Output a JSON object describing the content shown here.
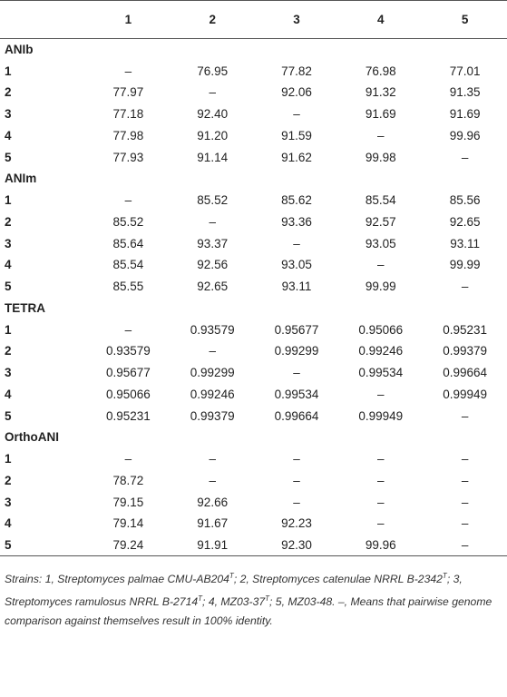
{
  "table": {
    "header": [
      "1",
      "2",
      "3",
      "4",
      "5"
    ],
    "sections": [
      {
        "title": "ANIb",
        "rows": [
          {
            "label": "1",
            "values": [
              "–",
              "76.95",
              "77.82",
              "76.98",
              "77.01"
            ]
          },
          {
            "label": "2",
            "values": [
              "77.97",
              "–",
              "92.06",
              "91.32",
              "91.35"
            ]
          },
          {
            "label": "3",
            "values": [
              "77.18",
              "92.40",
              "–",
              "91.69",
              "91.69"
            ]
          },
          {
            "label": "4",
            "values": [
              "77.98",
              "91.20",
              "91.59",
              "–",
              "99.96"
            ]
          },
          {
            "label": "5",
            "values": [
              "77.93",
              "91.14",
              "91.62",
              "99.98",
              "–"
            ]
          }
        ]
      },
      {
        "title": "ANIm",
        "rows": [
          {
            "label": "1",
            "values": [
              "–",
              "85.52",
              "85.62",
              "85.54",
              "85.56"
            ]
          },
          {
            "label": "2",
            "values": [
              "85.52",
              "–",
              "93.36",
              "92.57",
              "92.65"
            ]
          },
          {
            "label": "3",
            "values": [
              "85.64",
              "93.37",
              "–",
              "93.05",
              "93.11"
            ]
          },
          {
            "label": "4",
            "values": [
              "85.54",
              "92.56",
              "93.05",
              "–",
              "99.99"
            ]
          },
          {
            "label": "5",
            "values": [
              "85.55",
              "92.65",
              "93.11",
              "99.99",
              "–"
            ]
          }
        ]
      },
      {
        "title": "TETRA",
        "rows": [
          {
            "label": "1",
            "values": [
              "–",
              "0.93579",
              "0.95677",
              "0.95066",
              "0.95231"
            ]
          },
          {
            "label": "2",
            "values": [
              "0.93579",
              "–",
              "0.99299",
              "0.99246",
              "0.99379"
            ]
          },
          {
            "label": "3",
            "values": [
              "0.95677",
              "0.99299",
              "–",
              "0.99534",
              "0.99664"
            ]
          },
          {
            "label": "4",
            "values": [
              "0.95066",
              "0.99246",
              "0.99534",
              "–",
              "0.99949"
            ]
          },
          {
            "label": "5",
            "values": [
              "0.95231",
              "0.99379",
              "0.99664",
              "0.99949",
              "–"
            ]
          }
        ]
      },
      {
        "title": "OrthoANI",
        "rows": [
          {
            "label": "1",
            "values": [
              "–",
              "–",
              "–",
              "–",
              "–"
            ]
          },
          {
            "label": "2",
            "values": [
              "78.72",
              "–",
              "–",
              "–",
              "–"
            ]
          },
          {
            "label": "3",
            "values": [
              "79.15",
              "92.66",
              "–",
              "–",
              "–"
            ]
          },
          {
            "label": "4",
            "values": [
              "79.14",
              "91.67",
              "92.23",
              "–",
              "–"
            ]
          },
          {
            "label": "5",
            "values": [
              "79.24",
              "91.91",
              "92.30",
              "99.96",
              "–"
            ]
          }
        ]
      }
    ]
  },
  "footnote": [
    "Strains: 1, Streptomyces palmae CMU-AB204",
    "T",
    "; 2, Streptomyces catenulae NRRL B-2342",
    "T",
    "; 3, Streptomyces ramulosus NRRL B-2714",
    "T",
    "; 4, MZ03-37",
    "T",
    "; 5, MZ03-48. –, Means that pairwise genome comparison against themselves result in 100% identity."
  ]
}
